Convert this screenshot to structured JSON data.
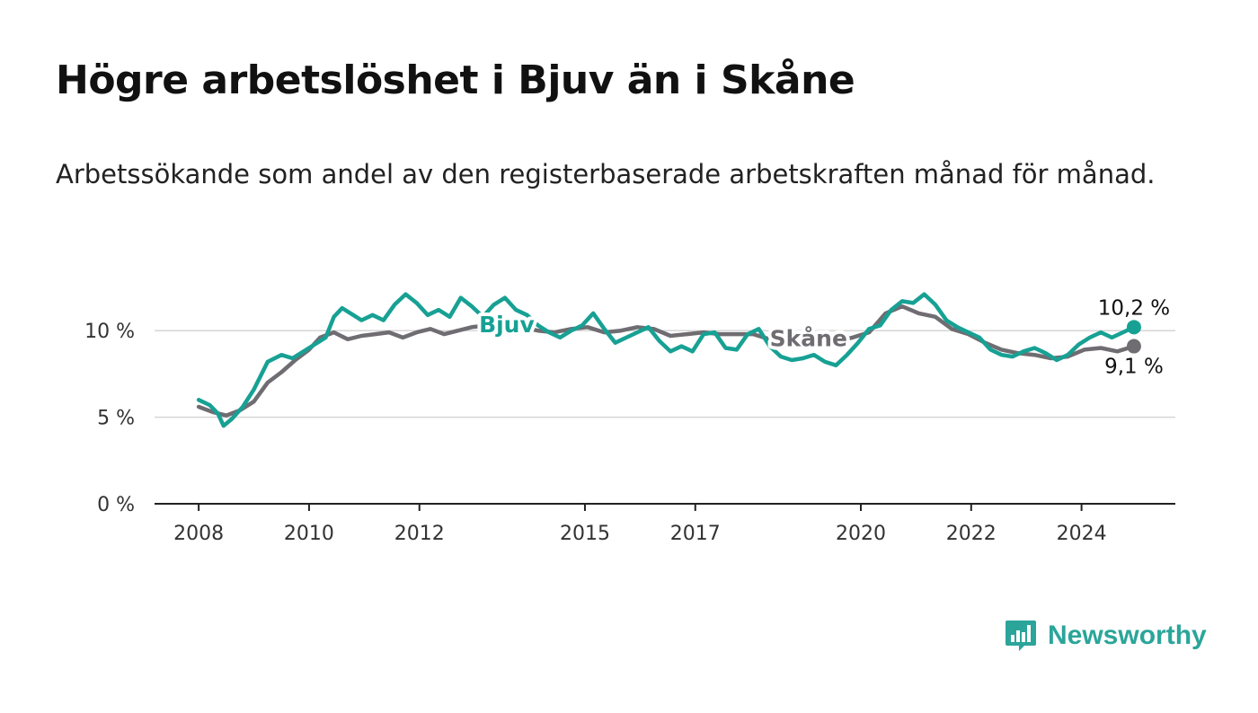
{
  "title": "Högre arbetslöshet i Bjuv än i Skåne",
  "subtitle": "Arbetssökande som andel av den registerbaserade arbetskraften månad för månad.",
  "brand": {
    "name": "Newsworthy",
    "color": "#2ba59a"
  },
  "chart_data": {
    "type": "line",
    "ylim": [
      0,
      12.5
    ],
    "xlim": [
      2007.2,
      2025.7
    ],
    "y_ticks": [
      {
        "value": 0,
        "label": "0 %"
      },
      {
        "value": 5,
        "label": "5 %"
      },
      {
        "value": 10,
        "label": "10 %"
      }
    ],
    "x_ticks": [
      {
        "value": 2008,
        "label": "2008"
      },
      {
        "value": 2010,
        "label": "2010"
      },
      {
        "value": 2012,
        "label": "2012"
      },
      {
        "value": 2015,
        "label": "2015"
      },
      {
        "value": 2017,
        "label": "2017"
      },
      {
        "value": 2020,
        "label": "2020"
      },
      {
        "value": 2022,
        "label": "2022"
      },
      {
        "value": 2024,
        "label": "2024"
      }
    ],
    "series": [
      {
        "name": "Skåne",
        "label": "Skåne",
        "color": "#6f6c72",
        "end_label": "9,1 %",
        "points": [
          [
            2008.0,
            5.6
          ],
          [
            2008.25,
            5.3
          ],
          [
            2008.5,
            5.1
          ],
          [
            2008.75,
            5.4
          ],
          [
            2009.0,
            5.9
          ],
          [
            2009.25,
            7.0
          ],
          [
            2009.5,
            7.6
          ],
          [
            2009.75,
            8.3
          ],
          [
            2010.0,
            8.9
          ],
          [
            2010.2,
            9.6
          ],
          [
            2010.45,
            9.9
          ],
          [
            2010.7,
            9.5
          ],
          [
            2010.95,
            9.7
          ],
          [
            2011.2,
            9.8
          ],
          [
            2011.45,
            9.9
          ],
          [
            2011.7,
            9.6
          ],
          [
            2011.95,
            9.9
          ],
          [
            2012.2,
            10.1
          ],
          [
            2012.45,
            9.8
          ],
          [
            2012.7,
            10.0
          ],
          [
            2012.95,
            10.2
          ],
          [
            2013.25,
            10.3
          ],
          [
            2013.55,
            10.4
          ],
          [
            2013.85,
            10.2
          ],
          [
            2014.15,
            10.0
          ],
          [
            2014.45,
            9.9
          ],
          [
            2014.75,
            10.1
          ],
          [
            2015.05,
            10.2
          ],
          [
            2015.35,
            9.9
          ],
          [
            2015.65,
            10.0
          ],
          [
            2015.95,
            10.2
          ],
          [
            2016.25,
            10.1
          ],
          [
            2016.55,
            9.7
          ],
          [
            2016.85,
            9.8
          ],
          [
            2017.15,
            9.9
          ],
          [
            2017.45,
            9.8
          ],
          [
            2017.75,
            9.8
          ],
          [
            2018.05,
            9.8
          ],
          [
            2018.35,
            9.5
          ],
          [
            2018.65,
            9.3
          ],
          [
            2018.95,
            9.2
          ],
          [
            2019.25,
            9.2
          ],
          [
            2019.55,
            9.4
          ],
          [
            2019.85,
            9.6
          ],
          [
            2020.15,
            9.9
          ],
          [
            2020.45,
            11.0
          ],
          [
            2020.75,
            11.4
          ],
          [
            2021.05,
            11.0
          ],
          [
            2021.35,
            10.8
          ],
          [
            2021.65,
            10.1
          ],
          [
            2021.95,
            9.8
          ],
          [
            2022.25,
            9.3
          ],
          [
            2022.55,
            8.9
          ],
          [
            2022.85,
            8.7
          ],
          [
            2023.15,
            8.6
          ],
          [
            2023.45,
            8.4
          ],
          [
            2023.75,
            8.5
          ],
          [
            2024.05,
            8.9
          ],
          [
            2024.35,
            9.0
          ],
          [
            2024.65,
            8.8
          ],
          [
            2024.95,
            9.1
          ]
        ]
      },
      {
        "name": "Bjuv",
        "label": "Bjuv",
        "color": "#17a194",
        "end_label": "10,2 %",
        "points": [
          [
            2008.0,
            6.0
          ],
          [
            2008.2,
            5.7
          ],
          [
            2008.35,
            5.2
          ],
          [
            2008.45,
            4.5
          ],
          [
            2008.6,
            4.9
          ],
          [
            2008.8,
            5.6
          ],
          [
            2009.0,
            6.6
          ],
          [
            2009.25,
            8.2
          ],
          [
            2009.5,
            8.6
          ],
          [
            2009.7,
            8.4
          ],
          [
            2009.95,
            8.9
          ],
          [
            2010.15,
            9.3
          ],
          [
            2010.3,
            9.6
          ],
          [
            2010.45,
            10.8
          ],
          [
            2010.6,
            11.3
          ],
          [
            2010.8,
            10.9
          ],
          [
            2010.95,
            10.6
          ],
          [
            2011.15,
            10.9
          ],
          [
            2011.35,
            10.6
          ],
          [
            2011.55,
            11.5
          ],
          [
            2011.75,
            12.1
          ],
          [
            2011.95,
            11.6
          ],
          [
            2012.15,
            10.9
          ],
          [
            2012.35,
            11.2
          ],
          [
            2012.55,
            10.8
          ],
          [
            2012.75,
            11.9
          ],
          [
            2012.95,
            11.4
          ],
          [
            2013.15,
            10.8
          ],
          [
            2013.35,
            11.5
          ],
          [
            2013.55,
            11.9
          ],
          [
            2013.75,
            11.2
          ],
          [
            2013.95,
            10.9
          ],
          [
            2014.15,
            10.3
          ],
          [
            2014.35,
            9.9
          ],
          [
            2014.55,
            9.6
          ],
          [
            2014.75,
            10.0
          ],
          [
            2014.95,
            10.3
          ],
          [
            2015.15,
            11.0
          ],
          [
            2015.35,
            10.1
          ],
          [
            2015.55,
            9.3
          ],
          [
            2015.75,
            9.6
          ],
          [
            2015.95,
            9.9
          ],
          [
            2016.15,
            10.2
          ],
          [
            2016.35,
            9.4
          ],
          [
            2016.55,
            8.8
          ],
          [
            2016.75,
            9.1
          ],
          [
            2016.95,
            8.8
          ],
          [
            2017.15,
            9.8
          ],
          [
            2017.35,
            9.9
          ],
          [
            2017.55,
            9.0
          ],
          [
            2017.75,
            8.9
          ],
          [
            2017.95,
            9.8
          ],
          [
            2018.15,
            10.1
          ],
          [
            2018.35,
            9.1
          ],
          [
            2018.55,
            8.5
          ],
          [
            2018.75,
            8.3
          ],
          [
            2018.95,
            8.4
          ],
          [
            2019.15,
            8.6
          ],
          [
            2019.35,
            8.2
          ],
          [
            2019.55,
            8.0
          ],
          [
            2019.75,
            8.6
          ],
          [
            2019.95,
            9.3
          ],
          [
            2020.15,
            10.1
          ],
          [
            2020.35,
            10.3
          ],
          [
            2020.55,
            11.2
          ],
          [
            2020.75,
            11.7
          ],
          [
            2020.95,
            11.6
          ],
          [
            2021.15,
            12.1
          ],
          [
            2021.35,
            11.5
          ],
          [
            2021.55,
            10.6
          ],
          [
            2021.75,
            10.2
          ],
          [
            2021.95,
            9.9
          ],
          [
            2022.15,
            9.6
          ],
          [
            2022.35,
            8.9
          ],
          [
            2022.55,
            8.6
          ],
          [
            2022.75,
            8.5
          ],
          [
            2022.95,
            8.8
          ],
          [
            2023.15,
            9.0
          ],
          [
            2023.35,
            8.7
          ],
          [
            2023.55,
            8.3
          ],
          [
            2023.75,
            8.6
          ],
          [
            2023.95,
            9.2
          ],
          [
            2024.15,
            9.6
          ],
          [
            2024.35,
            9.9
          ],
          [
            2024.55,
            9.6
          ],
          [
            2024.75,
            9.9
          ],
          [
            2024.95,
            10.2
          ]
        ]
      }
    ]
  }
}
